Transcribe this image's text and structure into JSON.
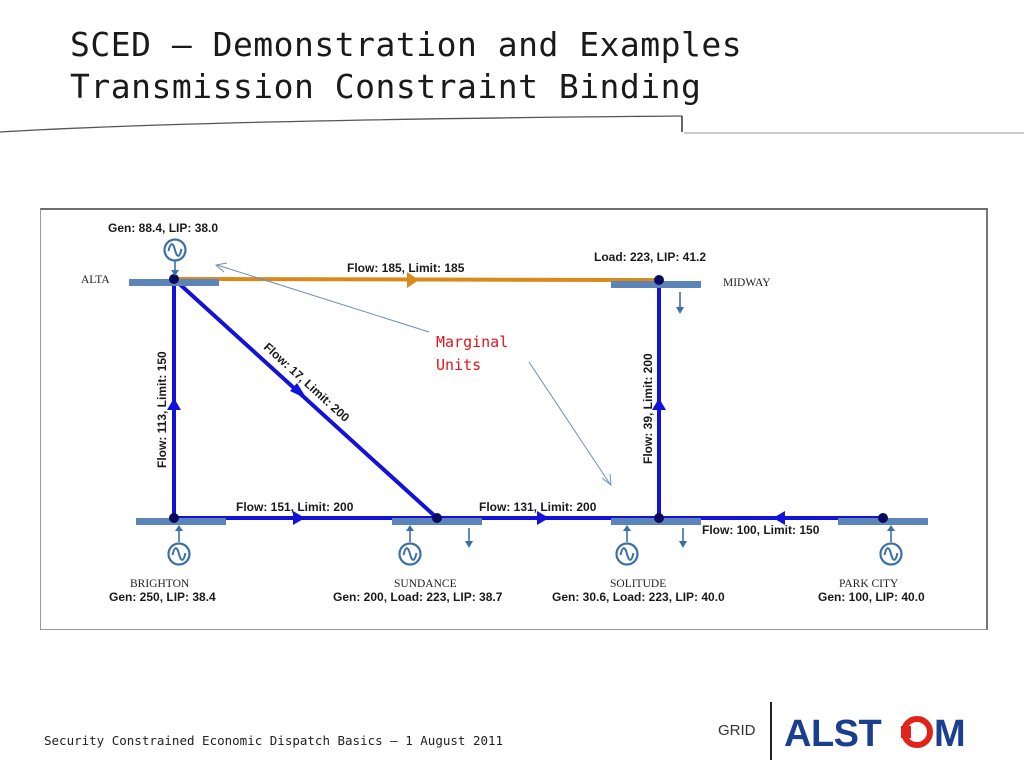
{
  "title": {
    "line1": "SCED – Demonstration and Examples",
    "line2": "Transmission Constraint Binding"
  },
  "diagram": {
    "buses": {
      "alta": "ALTA",
      "midway": "MIDWAY",
      "brighton": "BRIGHTON",
      "sundance": "SUNDANCE",
      "solitude": "SOLITUDE",
      "park_city": "PARK CITY"
    },
    "bus_info": {
      "alta": "Gen: 88.4, LIP: 38.0",
      "midway": "Load: 223, LIP: 41.2",
      "brighton": "Gen: 250, LIP: 38.4",
      "sundance": "Gen: 200,  Load: 223,  LIP: 38.7",
      "solitude": "Gen: 30.6,  Load: 223,  LIP: 40.0",
      "park_city": "Gen: 100, LIP: 40.0"
    },
    "lines": {
      "alta_midway": "Flow: 185, Limit: 185",
      "alta_brighton": "Flow: 113, Limit: 150",
      "alta_sundance": "Flow: 17, Limit: 200",
      "midway_solitude": "Flow: 39, Limit: 200",
      "brighton_sundance": "Flow: 151, Limit: 200",
      "sundance_solitude": "Flow: 131, Limit: 200",
      "parkcity_solitude": "Flow: 100, Limit: 150"
    },
    "annotation": {
      "line1": "Marginal",
      "line2": "Units"
    }
  },
  "footer": {
    "text": "Security Constrained Economic Dispatch Basics  –  1 August 2011",
    "grid": "GRID",
    "logo": "ALSTOM"
  },
  "colors": {
    "line_blue": "#1212d8",
    "line_orange": "#d98a1a",
    "bus_bar": "#5b85b8",
    "annotation_red": "#e0141e",
    "logo_blue": "#1b3f8f",
    "logo_red": "#e2231a"
  }
}
